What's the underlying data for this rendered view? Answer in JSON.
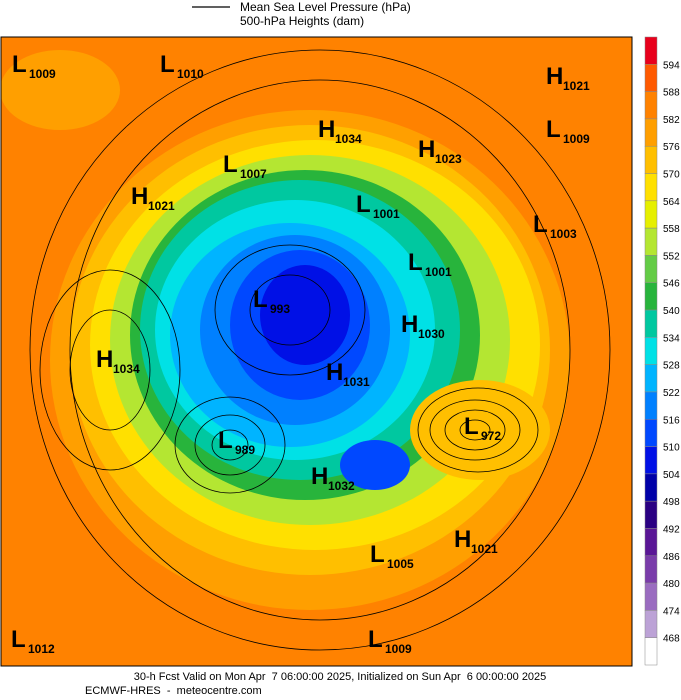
{
  "legend": {
    "line_label": "Mean Sea Level Pressure (hPa)",
    "fill_label": "500-hPa Heights (dam)"
  },
  "colorbar": {
    "levels": [
      594,
      588,
      582,
      576,
      570,
      564,
      558,
      552,
      546,
      540,
      534,
      528,
      522,
      516,
      510,
      504,
      498,
      492,
      486,
      480,
      474,
      468
    ],
    "colors": [
      "#e8001c",
      "#ff5a00",
      "#ff8200",
      "#ff9f00",
      "#ffbf00",
      "#ffe000",
      "#e6ef00",
      "#b4e632",
      "#64cc46",
      "#28b43c",
      "#00c8a0",
      "#00e1e6",
      "#00b4ff",
      "#0080ff",
      "#0048ff",
      "#0010e6",
      "#0000a8",
      "#2a0082",
      "#5a1696",
      "#7a3caa",
      "#9a6cc0",
      "#bca2d6",
      "#ffffff"
    ]
  },
  "centers": [
    {
      "type": "L",
      "value": 1009
    },
    {
      "type": "L",
      "value": 1010
    },
    {
      "type": "H",
      "value": 1021
    },
    {
      "type": "L",
      "value": 1009
    },
    {
      "type": "H",
      "value": 1034
    },
    {
      "type": "H",
      "value": 1023
    },
    {
      "type": "L",
      "value": 1007
    },
    {
      "type": "H",
      "value": 1021
    },
    {
      "type": "L",
      "value": 1001
    },
    {
      "type": "L",
      "value": 1003
    },
    {
      "type": "L",
      "value": 1001
    },
    {
      "type": "L",
      "value": 993
    },
    {
      "type": "H",
      "value": 1030
    },
    {
      "type": "H",
      "value": 1034
    },
    {
      "type": "H",
      "value": 1031
    },
    {
      "type": "L",
      "value": 972
    },
    {
      "type": "L",
      "value": 989
    },
    {
      "type": "H",
      "value": 1032
    },
    {
      "type": "H",
      "value": 1021
    },
    {
      "type": "L",
      "value": 1005
    },
    {
      "type": "L",
      "value": 1012
    },
    {
      "type": "L",
      "value": 1009
    }
  ],
  "footer": {
    "line1": "30-h Fcst Valid on Mon Apr  7 06:00:00 2025, Initialized on Sun Apr  6 00:00:00 2025",
    "line2": "ECMWF-HRES  -  meteocentre.com"
  }
}
